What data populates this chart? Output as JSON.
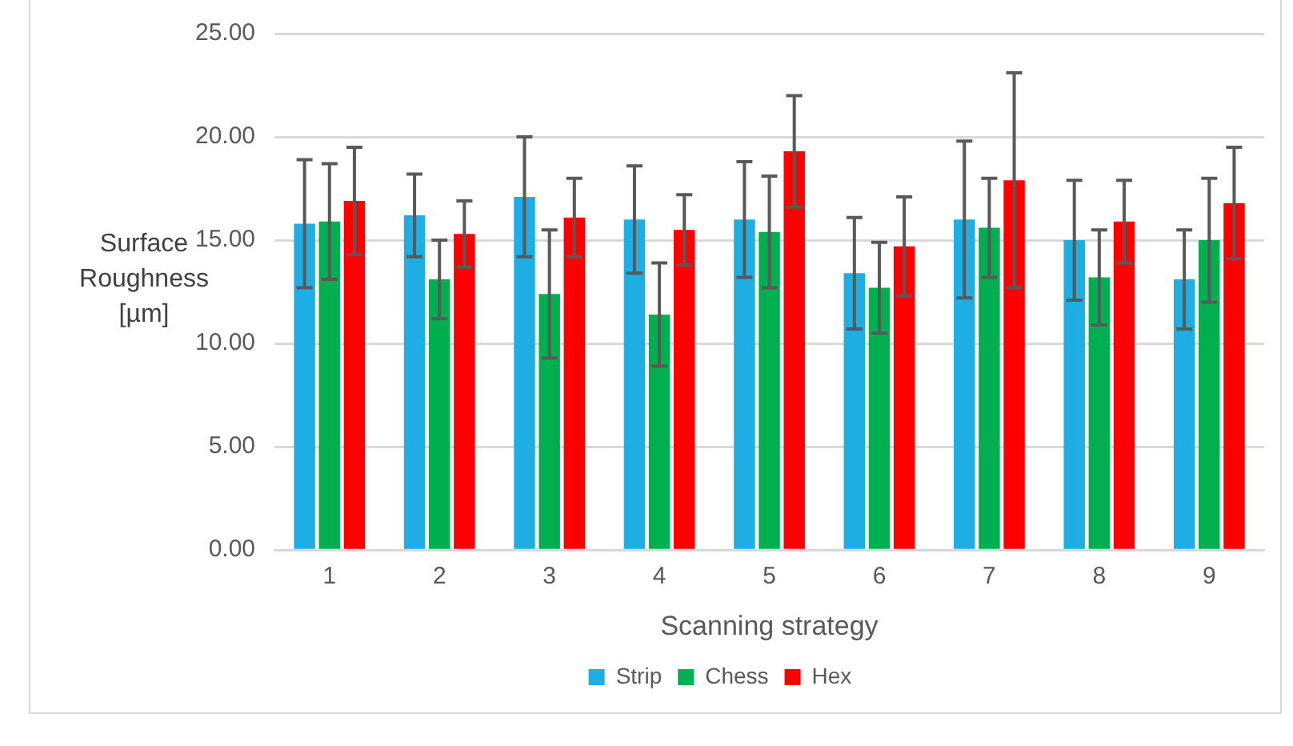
{
  "chart_data": {
    "type": "bar",
    "xlabel": "Scanning strategy",
    "ylabel": "Surface Roughness [µm]",
    "categories": [
      "1",
      "2",
      "3",
      "4",
      "5",
      "6",
      "7",
      "8",
      "9"
    ],
    "series": [
      {
        "name": "Strip",
        "color": "#1eaee4",
        "values": [
          15.8,
          16.2,
          17.1,
          16.0,
          16.0,
          13.4,
          16.0,
          15.0,
          13.1
        ],
        "errors": [
          3.1,
          2.0,
          2.9,
          2.6,
          2.8,
          2.7,
          3.8,
          2.9,
          2.4
        ]
      },
      {
        "name": "Chess",
        "color": "#00b050",
        "values": [
          15.9,
          13.1,
          12.4,
          11.4,
          15.4,
          12.7,
          15.6,
          13.2,
          15.0
        ],
        "errors": [
          2.8,
          1.9,
          3.1,
          2.5,
          2.7,
          2.2,
          2.4,
          2.3,
          3.0
        ]
      },
      {
        "name": "Hex",
        "color": "#ff0000",
        "values": [
          16.9,
          15.3,
          16.1,
          15.5,
          19.3,
          14.7,
          17.9,
          15.9,
          16.8
        ],
        "errors": [
          2.6,
          1.6,
          1.9,
          1.7,
          2.7,
          2.4,
          5.2,
          2.0,
          2.7
        ]
      }
    ],
    "ylim": [
      0,
      25
    ],
    "yticks": [
      {
        "value": 0,
        "label": "0.00"
      },
      {
        "value": 5,
        "label": "5.00"
      },
      {
        "value": 10,
        "label": "10.00"
      },
      {
        "value": 15,
        "label": "15.00"
      },
      {
        "value": 20,
        "label": "20.00"
      },
      {
        "value": 25,
        "label": "25.00"
      }
    ],
    "grid": "y",
    "legend": "bottom"
  }
}
